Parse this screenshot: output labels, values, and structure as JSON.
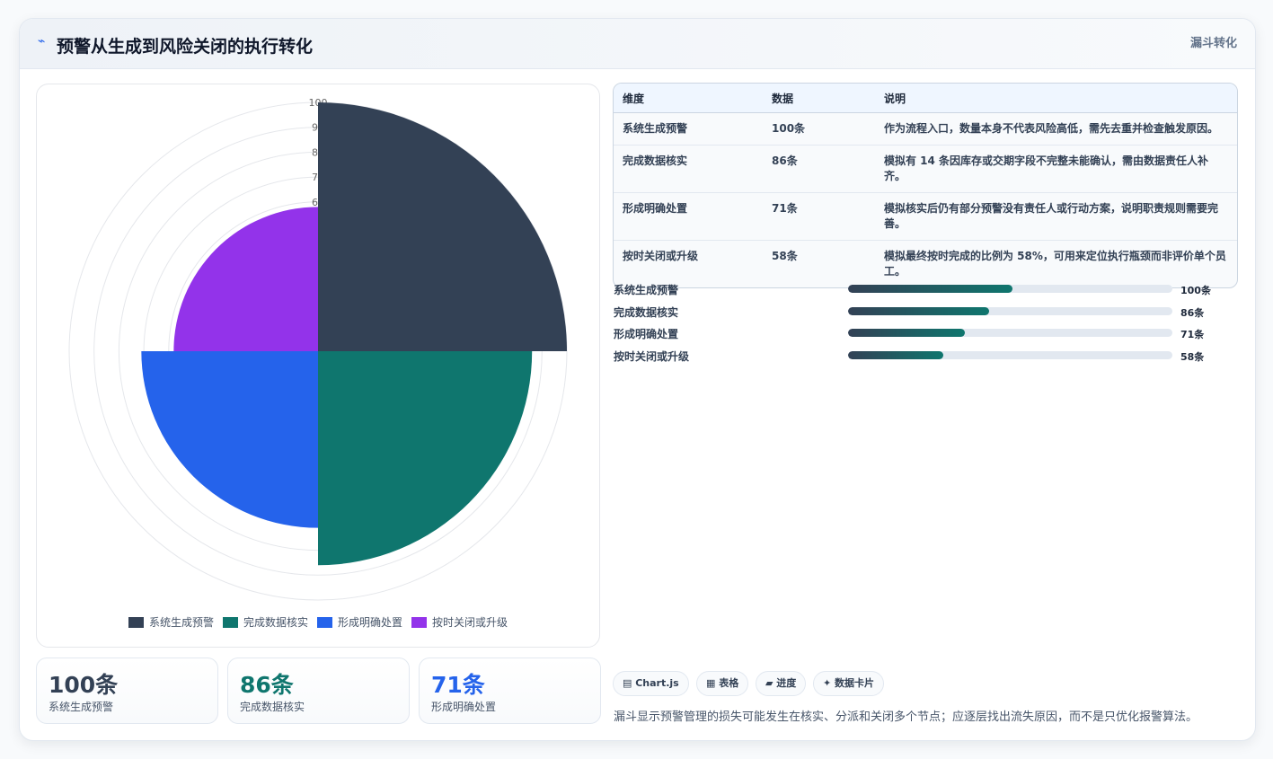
{
  "header": {
    "icon": "⌁",
    "title": "预警从生成到风险关闭的执行转化",
    "tag": "漏斗转化"
  },
  "chart_data": {
    "type": "polar",
    "categories": [
      "系统生成预警",
      "完成数据核实",
      "形成明确处置",
      "按时关闭或升级"
    ],
    "values": [
      100,
      86,
      71,
      58
    ],
    "colors": [
      "#334155",
      "#0f766e",
      "#2563eb",
      "#9333ea"
    ],
    "ylim": [
      0,
      100
    ],
    "yticks": [
      60,
      70,
      80,
      90,
      100
    ],
    "grid": true,
    "legend": "bottom"
  },
  "stat_cards": [
    {
      "value": "100条",
      "label": "系统生成预警",
      "color": "#334155"
    },
    {
      "value": "86条",
      "label": "完成数据核实",
      "color": "#0f766e"
    },
    {
      "value": "71条",
      "label": "形成明确处置",
      "color": "#2563eb"
    }
  ],
  "table": {
    "columns": [
      "维度",
      "数据",
      "说明"
    ],
    "rows": [
      [
        "系统生成预警",
        "100条",
        "作为流程入口，数量本身不代表风险高低，需先去重并检查触发原因。"
      ],
      [
        "完成数据核实",
        "86条",
        "模拟有 14 条因库存或交期字段不完整未能确认，需由数据责任人补齐。"
      ],
      [
        "形成明确处置",
        "71条",
        "模拟核实后仍有部分预警没有责任人或行动方案，说明职责规则需要完善。"
      ],
      [
        "按时关闭或升级",
        "58条",
        "模拟最终按时完成的比例为 58%，可用来定位执行瓶颈而非评价单个员工。"
      ]
    ]
  },
  "progress": {
    "labels": [
      "系统生成预警",
      "完成数据核实",
      "形成明确处置",
      "按时关闭或升级"
    ],
    "values": [
      100,
      86,
      71,
      58
    ],
    "value_labels": [
      "100条",
      "86条",
      "71条",
      "58条"
    ]
  },
  "chips": [
    "▤ Chart.js",
    "▦ 表格",
    "▰ 进度",
    "✦ 数据卡片"
  ],
  "note": "漏斗显示预警管理的损失可能发生在核实、分派和关闭多个节点；应逐层找出流失原因，而不是只优化报警算法。"
}
